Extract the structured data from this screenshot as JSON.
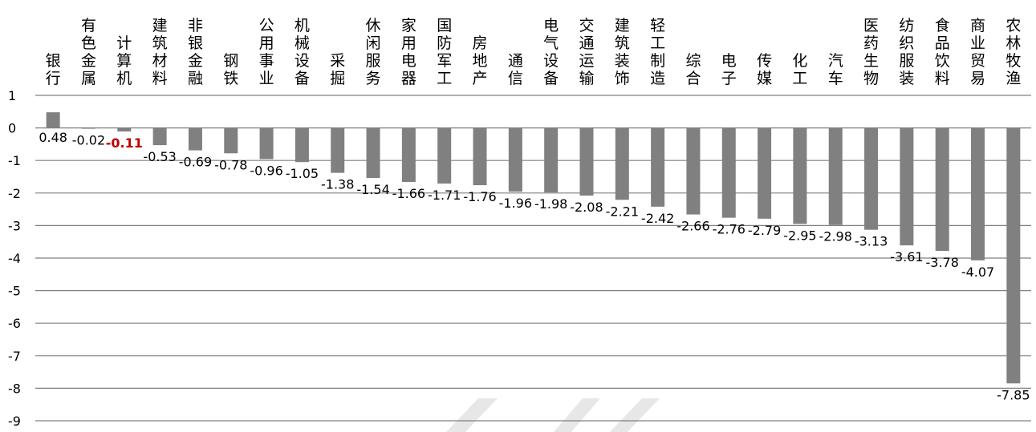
{
  "chart_data": {
    "type": "bar",
    "title": "",
    "xlabel": "",
    "ylabel": "",
    "ylim": [
      -9,
      1
    ],
    "yticks": [
      1,
      0,
      -1,
      -2,
      -3,
      -4,
      -5,
      -6,
      -7,
      -8,
      -9
    ],
    "grid": true,
    "categories": [
      "银行",
      "有色金属",
      "计算机",
      "建筑材料",
      "非银金融",
      "钢铁",
      "公用事业",
      "机械设备",
      "采掘",
      "休闲服务",
      "家用电器",
      "国防军工",
      "房地产",
      "通信",
      "电气设备",
      "交通运输",
      "建筑装饰",
      "轻工制造",
      "综合",
      "电子",
      "传媒",
      "化工",
      "汽车",
      "医药生物",
      "纺织服装",
      "食品饮料",
      "商业贸易",
      "农林牧渔"
    ],
    "values": [
      0.48,
      -0.02,
      -0.11,
      -0.53,
      -0.69,
      -0.78,
      -0.96,
      -1.05,
      -1.38,
      -1.54,
      -1.66,
      -1.71,
      -1.76,
      -1.96,
      -1.98,
      -2.08,
      -2.21,
      -2.42,
      -2.66,
      -2.76,
      -2.79,
      -2.95,
      -2.98,
      -3.13,
      -3.61,
      -3.78,
      -4.07,
      -7.85
    ],
    "data_labels": [
      "0.48",
      "-0.02",
      "-0.11",
      "-0.53",
      "-0.69",
      "-0.78",
      "-0.96",
      "-1.05",
      "-1.38",
      "-1.54",
      "-1.66",
      "-1.71",
      "-1.76",
      "-1.96",
      "-1.98",
      "-2.08",
      "-2.21",
      "-2.42",
      "-2.66",
      "-2.76",
      "-2.79",
      "-2.95",
      "-2.98",
      "-3.13",
      "-3.61",
      "-3.78",
      "-4.07",
      "-7.85"
    ],
    "highlight_index": 2,
    "colors": {
      "bar": "#808080",
      "grid": "#808080",
      "highlight_label": "#c00000"
    }
  }
}
